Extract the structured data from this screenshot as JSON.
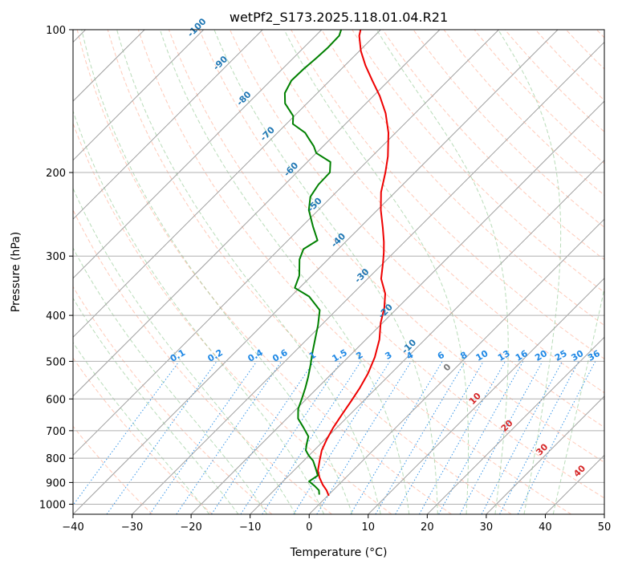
{
  "chart_data": {
    "type": "line",
    "subtype": "skew-T log-P diagram",
    "title": "wetPf2_S173.2025.118.01.04.R21",
    "xlabel": "Temperature (°C)",
    "ylabel": "Pressure (hPa)",
    "xlim": [
      -40,
      50
    ],
    "ylim": [
      1050,
      100
    ],
    "y_scale": "log",
    "x_ticks": [
      -40,
      -30,
      -20,
      -10,
      0,
      10,
      20,
      30,
      40,
      50
    ],
    "x_tick_labels": [
      "−40",
      "−30",
      "−20",
      "−10",
      "0",
      "10",
      "20",
      "30",
      "40",
      "50"
    ],
    "y_ticks": [
      1000,
      900,
      800,
      700,
      600,
      500,
      400,
      300,
      200,
      100
    ],
    "y_tick_labels": [
      "1000",
      "900",
      "800",
      "700",
      "600",
      "500",
      "400",
      "300",
      "200",
      "100"
    ],
    "grid": true,
    "colors": {
      "temperature": "#ee0000",
      "dewpoint": "#008000",
      "mixing_ratio": "#1e88e5",
      "dry_adiabat": "#ff9f80",
      "moist_adiabat": "#7fbf7f",
      "isotherm": "#a0a0a0",
      "isotherm_label": "#1f77b4",
      "highlight_isotherm_label": "#d62728"
    },
    "series": [
      {
        "role": "temperature",
        "points": [
          [
            0.2,
            960
          ],
          [
            -1.1,
            935
          ],
          [
            -2.7,
            910
          ],
          [
            -4.4,
            880
          ],
          [
            -5.9,
            850
          ],
          [
            -7.3,
            810
          ],
          [
            -8.7,
            770
          ],
          [
            -9.7,
            730
          ],
          [
            -10.6,
            690
          ],
          [
            -11.3,
            650
          ],
          [
            -12.0,
            610
          ],
          [
            -12.8,
            570
          ],
          [
            -13.9,
            530
          ],
          [
            -15.5,
            490
          ],
          [
            -17.7,
            450
          ],
          [
            -20.3,
            415
          ],
          [
            -22.3,
            385
          ],
          [
            -24.5,
            360
          ],
          [
            -27.7,
            335
          ],
          [
            -30.1,
            310
          ],
          [
            -31.7,
            295
          ],
          [
            -33.5,
            280
          ],
          [
            -36.0,
            262
          ],
          [
            -39.4,
            240
          ],
          [
            -42.4,
            220
          ],
          [
            -45.0,
            200
          ],
          [
            -47.3,
            185
          ],
          [
            -51.2,
            165
          ],
          [
            -55.0,
            150
          ],
          [
            -58.9,
            138
          ],
          [
            -62.8,
            128
          ],
          [
            -66.5,
            119
          ],
          [
            -69.7,
            111
          ],
          [
            -72.6,
            103
          ],
          [
            -73.4,
            100
          ]
        ]
      },
      {
        "role": "dewpoint",
        "points": [
          [
            -1.6,
            955
          ],
          [
            -2.4,
            935
          ],
          [
            -3.9,
            915
          ],
          [
            -5.6,
            895
          ],
          [
            -5.1,
            870
          ],
          [
            -6.7,
            840
          ],
          [
            -8.4,
            810
          ],
          [
            -10.0,
            790
          ],
          [
            -11.4,
            770
          ],
          [
            -12.4,
            745
          ],
          [
            -13.3,
            720
          ],
          [
            -15.6,
            690
          ],
          [
            -18.1,
            660
          ],
          [
            -19.7,
            630
          ],
          [
            -20.8,
            600
          ],
          [
            -22.0,
            570
          ],
          [
            -23.4,
            540
          ],
          [
            -25.0,
            510
          ],
          [
            -26.8,
            480
          ],
          [
            -28.6,
            450
          ],
          [
            -30.5,
            420
          ],
          [
            -32.8,
            390
          ],
          [
            -36.9,
            365
          ],
          [
            -40.8,
            350
          ],
          [
            -42.1,
            330
          ],
          [
            -44.8,
            305
          ],
          [
            -45.9,
            290
          ],
          [
            -45.0,
            278
          ],
          [
            -48.1,
            260
          ],
          [
            -51.6,
            240
          ],
          [
            -53.6,
            225
          ],
          [
            -54.3,
            212
          ],
          [
            -54.4,
            200
          ],
          [
            -56.1,
            190
          ],
          [
            -60.0,
            182
          ],
          [
            -61.6,
            176
          ],
          [
            -63.6,
            170
          ],
          [
            -65.3,
            165
          ],
          [
            -68.9,
            158
          ],
          [
            -70.2,
            152
          ],
          [
            -73.7,
            143
          ],
          [
            -75.5,
            136
          ],
          [
            -76.5,
            128
          ],
          [
            -76.4,
            121
          ],
          [
            -76.1,
            115
          ],
          [
            -75.9,
            109
          ],
          [
            -76.0,
            103
          ],
          [
            -76.7,
            100
          ]
        ]
      }
    ],
    "isotherm_labels": [
      "-100",
      "-90",
      "-80",
      "-70",
      "-60",
      "-50",
      "-40",
      "-30",
      "-20",
      "-10",
      "0",
      "10",
      "20",
      "30",
      "40"
    ],
    "mixing_ratio_labels": [
      "0.1",
      "0.2",
      "0.4",
      "0.6",
      "1",
      "1.5",
      "2",
      "3",
      "4",
      "6",
      "8",
      "10",
      "13",
      "16",
      "20",
      "25",
      "30",
      "36"
    ]
  }
}
